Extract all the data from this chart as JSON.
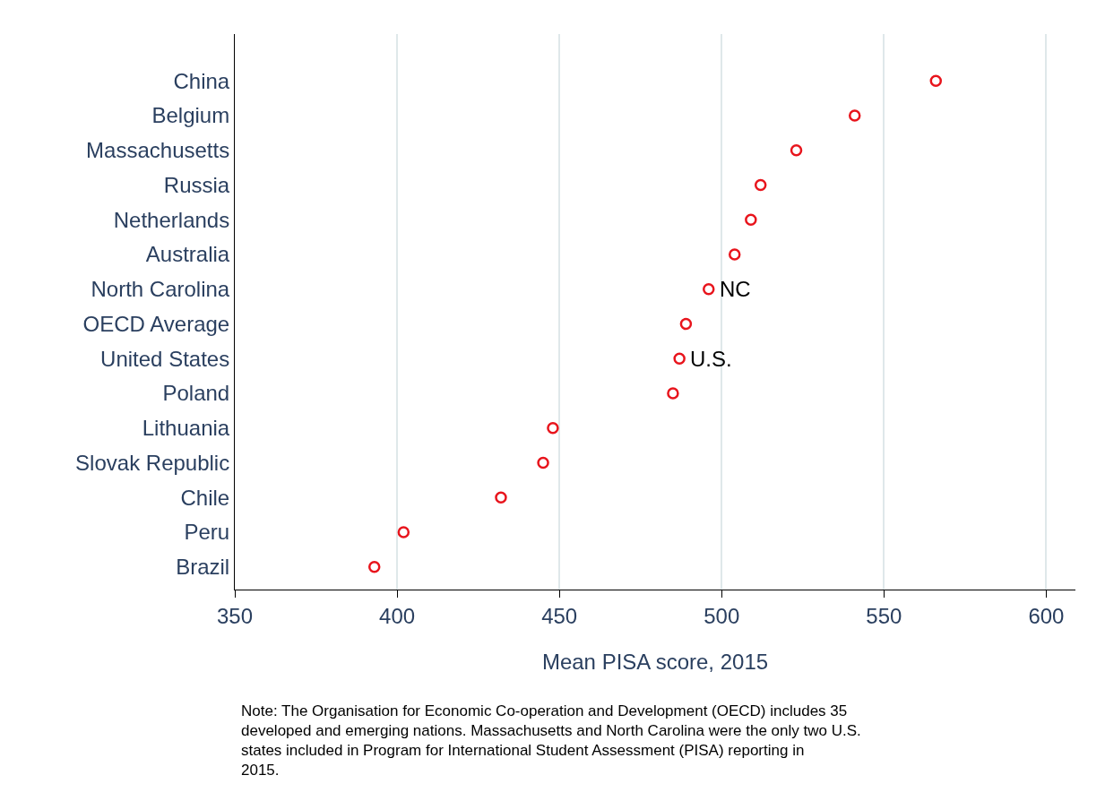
{
  "chart_data": {
    "type": "scatter",
    "orientation": "horizontal",
    "categories": [
      "China",
      "Belgium",
      "Massachusetts",
      "Russia",
      "Netherlands",
      "Australia",
      "North Carolina",
      "OECD Average",
      "United States",
      "Poland",
      "Lithuania",
      "Slovak Republic",
      "Chile",
      "Peru",
      "Brazil"
    ],
    "values": [
      566,
      541,
      523,
      512,
      509,
      504,
      496,
      489,
      487,
      485,
      448,
      445,
      432,
      402,
      393
    ],
    "color": "#e8141c",
    "marker": "circle",
    "xlim": [
      350,
      609
    ],
    "xticks": [
      350,
      400,
      450,
      500,
      550,
      600
    ],
    "xlabel": "Mean PISA score, 2015",
    "grid": "x",
    "legend": false,
    "annotations": [
      {
        "text": "NC",
        "x": 496,
        "y": "North Carolina"
      },
      {
        "text": "U.S.",
        "x": 487,
        "y": "United States"
      },
      "Note: The Organisation for Economic Co-operation and Development (OECD) includes 35 developed and emerging nations. Massachusetts and North Carolina were the only two U.S. states included in Program for International Student Assessment (PISA) reporting in 2015."
    ]
  }
}
